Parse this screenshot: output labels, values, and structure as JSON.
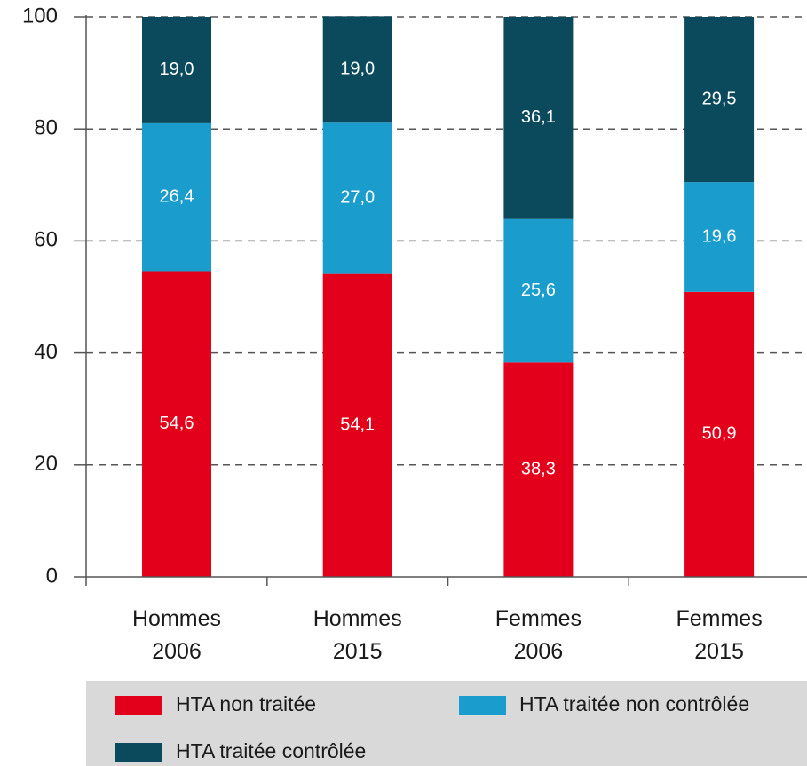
{
  "chart_data": {
    "type": "stacked-bar",
    "categories": [
      "Hommes 2006",
      "Hommes 2015",
      "Femmes 2006",
      "Femmes 2015"
    ],
    "series": [
      {
        "name": "HTA non traitée",
        "color": "#e2001a",
        "values": [
          54.6,
          54.1,
          38.3,
          50.9
        ],
        "value_labels": [
          "54,6",
          "54,1",
          "38,3",
          "50,9"
        ]
      },
      {
        "name": "HTA traitée non contrôlée",
        "color": "#1a9dcc",
        "values": [
          26.4,
          27.0,
          25.6,
          19.6
        ],
        "value_labels": [
          "26,4",
          "27,0",
          "25,6",
          "19,6"
        ]
      },
      {
        "name": "HTA traitée contrôlée",
        "color": "#0b4a5c",
        "values": [
          19.0,
          19.0,
          36.1,
          29.5
        ],
        "value_labels": [
          "19,0",
          "19,0",
          "36,1",
          "29,5"
        ]
      }
    ],
    "ylim": [
      0,
      100
    ],
    "yticks": [
      0,
      20,
      40,
      60,
      80,
      100
    ],
    "grid": true,
    "legend": "bottom"
  }
}
